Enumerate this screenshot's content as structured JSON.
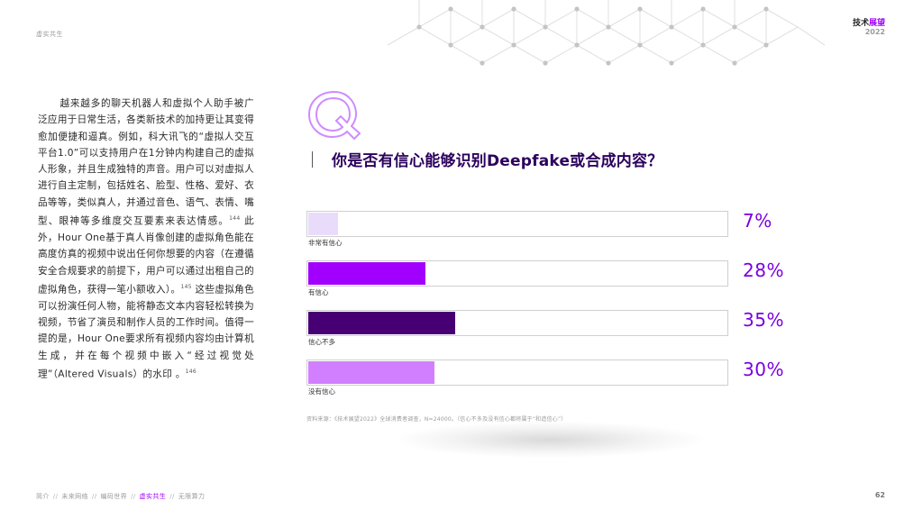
{
  "header": {
    "section_label": "虚实共生",
    "brand_main": "技术",
    "brand_accent": "展望",
    "brand_year": "2022"
  },
  "body": {
    "paragraph_1": "越来越多的聊天机器人和虚拟个人助手被广泛应用于日常生活，各类新技术的加持更让其变得愈加便捷和逼真。例如，科大讯飞的“虚拟人交互平台1.0”可以支持用户在1分钟内构建自己的虚拟人形象，并且生成独特的声音。用户可以对虚拟人进行自主定制，包括姓名、脸型、性格、爱好、衣品等等，类似真人，并通过音色、语气、表情、嘴型、眼神等多维度交互要素来表达情感。",
    "ref_1": "144",
    "paragraph_2": "此外，Hour One基于真人肖像创建的虚拟角色能在高度仿真的视频中说出任何你想要的内容（在遵循安全合规要求的前提下，用户可以通过出租自己的虚拟角色，获得一笔小额收入）。",
    "ref_2": "145",
    "paragraph_3": "这些虚拟角色可以扮演任何人物，能将静态文本内容轻松转换为视频，节省了演员和制作人员的工作时间。值得一提的是，Hour One要求所有视频内容均由计算机生成，并在每个视频中嵌入“经过视觉处理”（Altered Visuals）的水印 。",
    "ref_3": "146"
  },
  "survey": {
    "question": "你是否有信心能够识别Deepfake或合成内容？",
    "q_icon": "q-letter-icon",
    "source": "资料来源：《技术展望2022》全球消费者调查，N=24000。（信心不多及没有信心都将属于“和造信心”）"
  },
  "chart_data": {
    "type": "bar",
    "orientation": "horizontal",
    "categories": [
      "非常有信心",
      "有信心",
      "信心不多",
      "没有信心"
    ],
    "values": [
      7,
      28,
      35,
      30
    ],
    "value_labels": [
      "7%",
      "28%",
      "35%",
      "30%"
    ],
    "colors": [
      "#e9dcfb",
      "#a100ff",
      "#460073",
      "#d27fff"
    ],
    "xlim": [
      0,
      100
    ],
    "title": "",
    "xlabel": "",
    "ylabel": ""
  },
  "footer": {
    "nav": [
      "简介",
      "未来网络",
      "编码世界",
      "虚实共生",
      "无限算力"
    ],
    "active_index": 3,
    "separator": "//",
    "page_number": "62"
  },
  "colors": {
    "accent": "#a100ff",
    "question_text": "#2b005c",
    "percent_text": "#7a00df"
  }
}
